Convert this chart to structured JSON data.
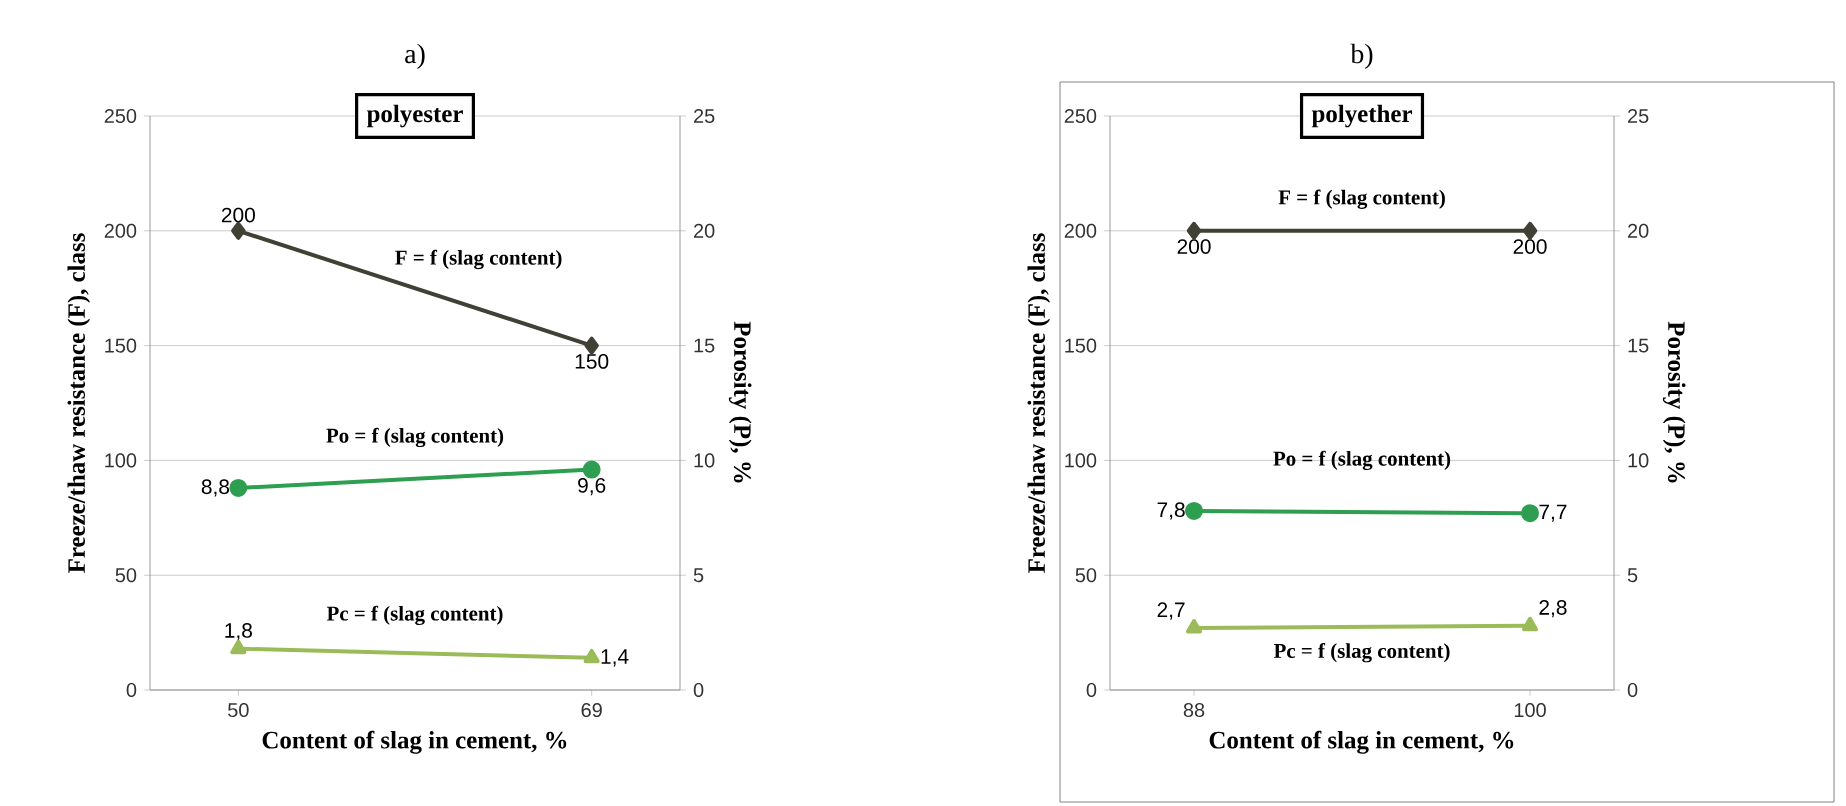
{
  "chart_data": [
    {
      "type": "line",
      "title": "a)",
      "annotations": [
        "polyester"
      ],
      "xlabel": "Content of slag in cement, %",
      "ylabel": "Freeze/thaw resistance (F), class",
      "y2label": "Porosity (P), %",
      "categories": [
        "50",
        "69"
      ],
      "grid": "y",
      "ylim": [
        0,
        250
      ],
      "yticks": [
        0,
        50,
        100,
        150,
        200,
        250
      ],
      "y2lim": [
        0,
        25
      ],
      "y2ticks": [
        0,
        5,
        10,
        15,
        20,
        25
      ],
      "series": [
        {
          "name": "F = f (slag content)",
          "color": "#404035",
          "marker": "diamond",
          "values": [
            200,
            150
          ],
          "value_labels": [
            "200",
            "150"
          ]
        },
        {
          "name": "Po = f (slag content)",
          "color": "#2e9e50",
          "marker": "circle",
          "axis": "y2",
          "values": [
            8.8,
            9.6
          ],
          "value_labels": [
            "8,8",
            "9,6"
          ]
        },
        {
          "name": "Pc = f (slag content)",
          "color": "#9bbb59",
          "marker": "triangle",
          "axis": "y2",
          "values": [
            1.8,
            1.4
          ],
          "value_labels": [
            "1,8",
            "1,4"
          ]
        }
      ]
    },
    {
      "type": "line",
      "title": "b)",
      "annotations": [
        "polyether"
      ],
      "xlabel": "Content of slag in cement, %",
      "ylabel": "Freeze/thaw resistance (F), class",
      "y2label": "Porosity (P), %",
      "categories": [
        "88",
        "100"
      ],
      "grid": "y",
      "ylim": [
        0,
        250
      ],
      "yticks": [
        0,
        50,
        100,
        150,
        200,
        250
      ],
      "y2lim": [
        0,
        25
      ],
      "y2ticks": [
        0,
        5,
        10,
        15,
        20,
        25
      ],
      "series": [
        {
          "name": "F = f (slag content)",
          "color": "#404035",
          "marker": "diamond",
          "values": [
            200,
            200
          ],
          "value_labels": [
            "200",
            "200"
          ]
        },
        {
          "name": "Po = f (slag content)",
          "color": "#2e9e50",
          "marker": "circle",
          "axis": "y2",
          "values": [
            7.8,
            7.7
          ],
          "value_labels": [
            "7,8",
            "7,7"
          ]
        },
        {
          "name": "Pc = f (slag content)",
          "color": "#9bbb59",
          "marker": "triangle",
          "axis": "y2",
          "values": [
            2.7,
            2.8
          ],
          "value_labels": [
            "2,7",
            "2,8"
          ]
        }
      ]
    }
  ]
}
